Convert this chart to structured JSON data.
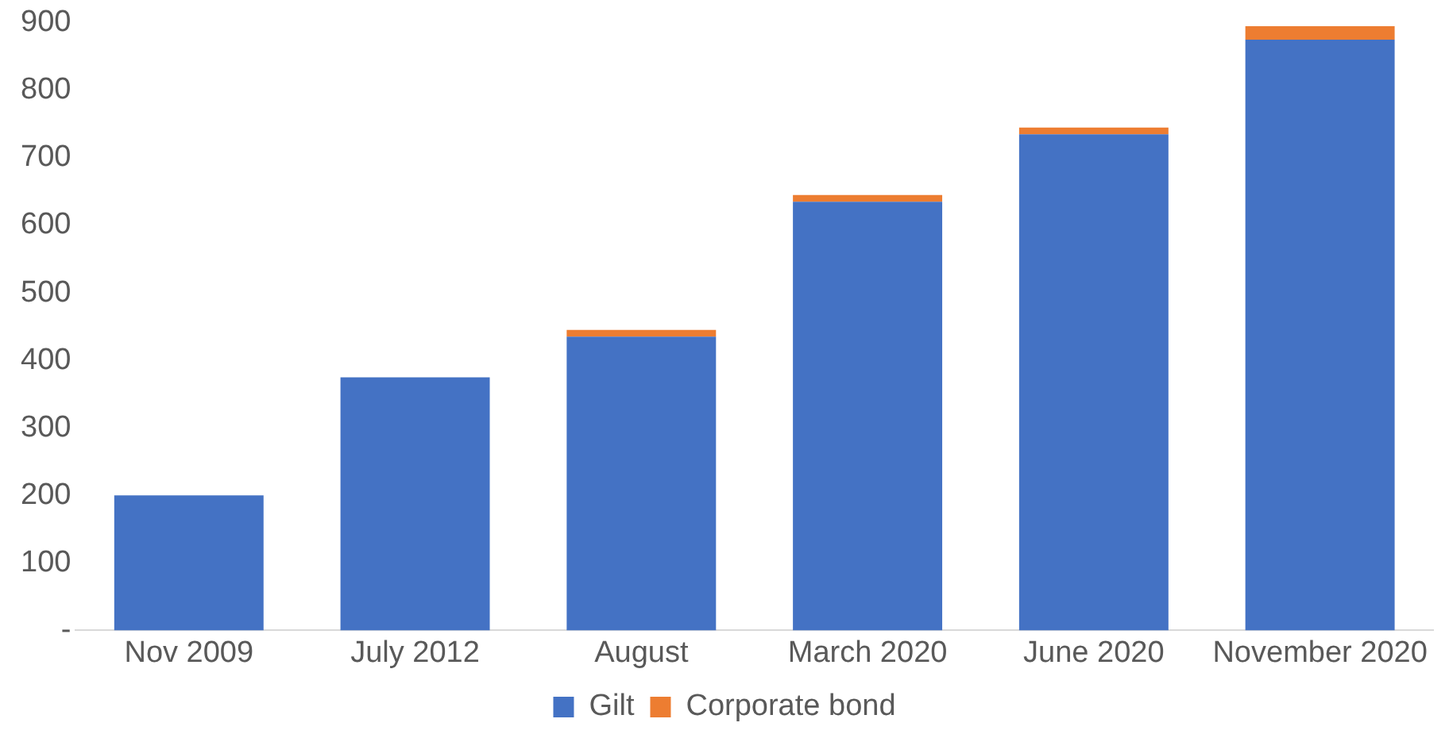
{
  "chart_data": {
    "type": "bar",
    "stacked": true,
    "categories": [
      "Nov 2009",
      "July 2012",
      "August",
      "March 2020",
      "June 2020",
      "November 2020"
    ],
    "series": [
      {
        "name": "Gilt",
        "color": "#4472c4",
        "values": [
          200,
          375,
          435,
          635,
          735,
          875
        ]
      },
      {
        "name": "Corporate bond",
        "color": "#ed7d31",
        "values": [
          null,
          null,
          10,
          10,
          10,
          20
        ]
      }
    ],
    "ylim": [
      0,
      900
    ],
    "yticks": [
      {
        "value": 0,
        "label": "-"
      },
      100,
      200,
      300,
      400,
      500,
      600,
      700,
      800,
      900
    ],
    "grid": false,
    "legend": "bottom"
  }
}
